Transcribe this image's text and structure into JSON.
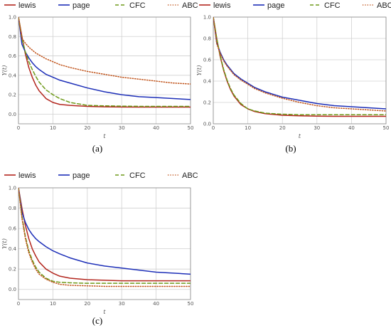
{
  "legend_labels": {
    "lewis": "lewis",
    "page": "page",
    "CFC": "CFC",
    "ABC": "ABC"
  },
  "colors": {
    "lewis": "#b3261e",
    "page": "#1d2fb8",
    "CFC": "#6e9a1a",
    "ABC": "#c0531a"
  },
  "chart_data": [
    {
      "type": "line",
      "caption": "(a)",
      "xlabel": "t",
      "ylabel": "Y(t)",
      "xlim": [
        0,
        50
      ],
      "ylim": [
        -0.1,
        1.0
      ],
      "xticks": [
        "0",
        "10",
        "20",
        "30",
        "40",
        "50"
      ],
      "yticks": [
        "0.0",
        "0.2",
        "0.4",
        "0.6",
        "0.8",
        "1.0"
      ],
      "grid": true,
      "legend_position": "top",
      "x": [
        0,
        1,
        2,
        3,
        4,
        5,
        6,
        8,
        10,
        12,
        15,
        20,
        25,
        30,
        35,
        40,
        45,
        50
      ],
      "series": [
        {
          "name": "lewis",
          "style": "solid",
          "values": [
            1.0,
            0.8,
            0.62,
            0.48,
            0.38,
            0.3,
            0.24,
            0.16,
            0.12,
            0.1,
            0.09,
            0.08,
            0.075,
            0.073,
            0.072,
            0.072,
            0.072,
            0.072
          ]
        },
        {
          "name": "page",
          "style": "solid",
          "values": [
            1.0,
            0.72,
            0.64,
            0.58,
            0.53,
            0.49,
            0.46,
            0.41,
            0.38,
            0.35,
            0.32,
            0.27,
            0.23,
            0.2,
            0.18,
            0.17,
            0.16,
            0.15
          ]
        },
        {
          "name": "CFC",
          "style": "dashed",
          "values": [
            1.0,
            0.78,
            0.64,
            0.54,
            0.46,
            0.39,
            0.33,
            0.25,
            0.2,
            0.16,
            0.12,
            0.09,
            0.085,
            0.082,
            0.08,
            0.08,
            0.08,
            0.08
          ]
        },
        {
          "name": "ABC",
          "style": "dotted",
          "values": [
            1.0,
            0.78,
            0.73,
            0.69,
            0.66,
            0.63,
            0.61,
            0.57,
            0.54,
            0.51,
            0.48,
            0.44,
            0.41,
            0.38,
            0.36,
            0.34,
            0.32,
            0.31
          ]
        }
      ]
    },
    {
      "type": "line",
      "caption": "(b)",
      "xlabel": "t",
      "ylabel": "Y(t)",
      "xlim": [
        0,
        50
      ],
      "ylim": [
        0.0,
        1.0
      ],
      "xticks": [
        "0",
        "10",
        "20",
        "30",
        "40",
        "50"
      ],
      "yticks": [
        "0.0",
        "0.2",
        "0.4",
        "0.6",
        "0.8",
        "1.0"
      ],
      "grid": true,
      "legend_position": "top",
      "x": [
        0,
        1,
        2,
        3,
        4,
        5,
        6,
        8,
        10,
        12,
        15,
        20,
        25,
        30,
        35,
        40,
        45,
        50
      ],
      "series": [
        {
          "name": "lewis",
          "style": "solid",
          "values": [
            1.0,
            0.8,
            0.63,
            0.5,
            0.4,
            0.32,
            0.26,
            0.18,
            0.14,
            0.115,
            0.095,
            0.08,
            0.075,
            0.072,
            0.07,
            0.07,
            0.07,
            0.07
          ]
        },
        {
          "name": "page",
          "style": "solid",
          "values": [
            1.0,
            0.76,
            0.67,
            0.6,
            0.55,
            0.51,
            0.47,
            0.42,
            0.38,
            0.34,
            0.3,
            0.25,
            0.22,
            0.19,
            0.17,
            0.16,
            0.15,
            0.14
          ]
        },
        {
          "name": "CFC",
          "style": "dashed",
          "values": [
            1.0,
            0.8,
            0.64,
            0.51,
            0.41,
            0.33,
            0.27,
            0.19,
            0.14,
            0.12,
            0.1,
            0.09,
            0.085,
            0.085,
            0.085,
            0.085,
            0.085,
            0.085
          ]
        },
        {
          "name": "ABC",
          "style": "dotted",
          "values": [
            1.0,
            0.75,
            0.66,
            0.59,
            0.54,
            0.5,
            0.46,
            0.41,
            0.37,
            0.33,
            0.29,
            0.24,
            0.2,
            0.17,
            0.15,
            0.14,
            0.13,
            0.12
          ]
        }
      ]
    },
    {
      "type": "line",
      "caption": "(c)",
      "xlabel": "t",
      "ylabel": "Y(t)",
      "xlim": [
        0,
        50
      ],
      "ylim": [
        -0.1,
        1.0
      ],
      "xticks": [
        "0",
        "10",
        "20",
        "30",
        "40",
        "50"
      ],
      "yticks": [
        "0.0",
        "0.2",
        "0.4",
        "0.6",
        "0.8",
        "1.0"
      ],
      "grid": true,
      "legend_position": "top",
      "x": [
        0,
        1,
        2,
        3,
        4,
        5,
        6,
        8,
        10,
        12,
        15,
        20,
        25,
        30,
        35,
        40,
        45,
        50
      ],
      "series": [
        {
          "name": "lewis",
          "style": "solid",
          "values": [
            1.0,
            0.8,
            0.63,
            0.5,
            0.4,
            0.33,
            0.27,
            0.2,
            0.16,
            0.13,
            0.11,
            0.095,
            0.09,
            0.085,
            0.085,
            0.085,
            0.085,
            0.085
          ]
        },
        {
          "name": "page",
          "style": "solid",
          "values": [
            1.0,
            0.76,
            0.66,
            0.59,
            0.54,
            0.5,
            0.47,
            0.42,
            0.38,
            0.35,
            0.31,
            0.26,
            0.23,
            0.21,
            0.19,
            0.17,
            0.16,
            0.15
          ]
        },
        {
          "name": "CFC",
          "style": "dashed",
          "values": [
            1.0,
            0.72,
            0.52,
            0.38,
            0.29,
            0.22,
            0.17,
            0.11,
            0.08,
            0.07,
            0.065,
            0.06,
            0.06,
            0.06,
            0.06,
            0.06,
            0.06,
            0.06
          ]
        },
        {
          "name": "ABC",
          "style": "dotted",
          "values": [
            1.0,
            0.7,
            0.5,
            0.36,
            0.27,
            0.2,
            0.15,
            0.1,
            0.07,
            0.05,
            0.04,
            0.035,
            0.03,
            0.03,
            0.03,
            0.03,
            0.03,
            0.03
          ]
        }
      ]
    }
  ]
}
